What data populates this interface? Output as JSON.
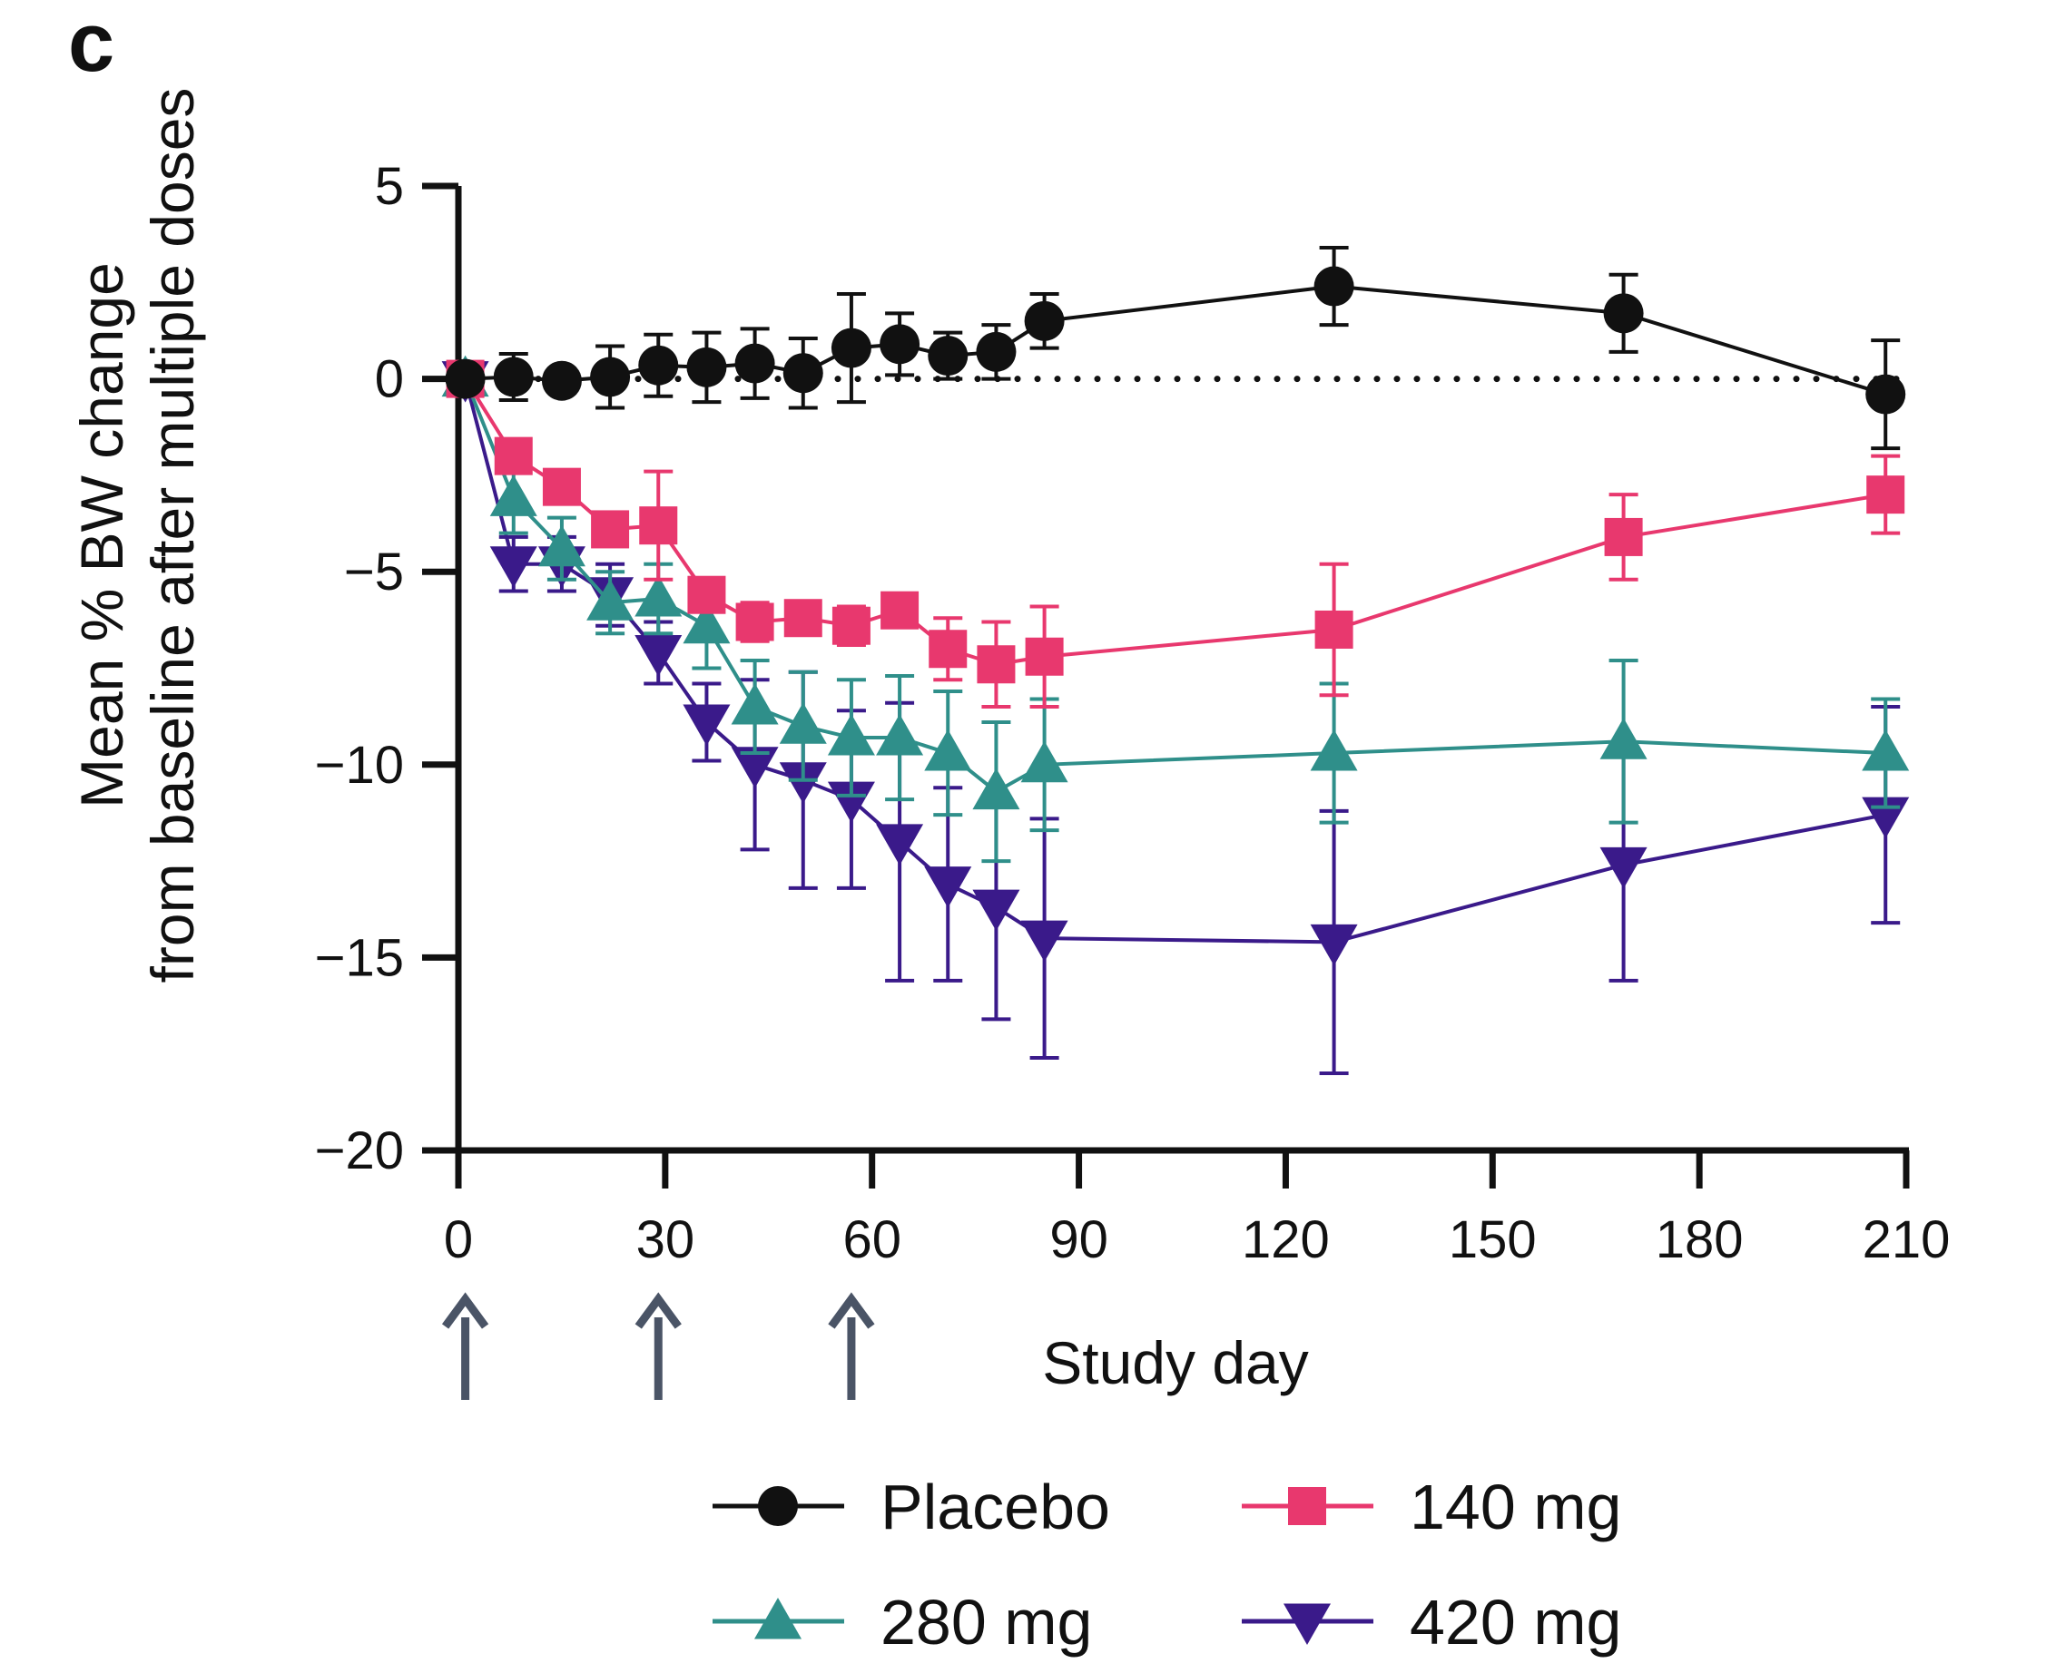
{
  "panel_label": "c",
  "chart_data": {
    "type": "line",
    "title": "",
    "xlabel": "Study day",
    "ylabel_lines": [
      "Mean % BW change",
      "from baseline after multiple doses"
    ],
    "xlim": [
      0,
      210
    ],
    "ylim": [
      -20,
      5
    ],
    "xticks": [
      0,
      30,
      60,
      90,
      120,
      150,
      180,
      210
    ],
    "yticks": [
      5,
      0,
      -5,
      -10,
      -15,
      -20
    ],
    "xtick_labels": [
      "0",
      "30",
      "60",
      "90",
      "120",
      "150",
      "180",
      "210"
    ],
    "ytick_labels": [
      "5",
      "0",
      "−5",
      "−10",
      "−15",
      "−20"
    ],
    "reference_line": {
      "y": 0,
      "style": "dotted"
    },
    "dose_days": [
      1,
      29,
      57
    ],
    "legend_position": "bottom",
    "series": [
      {
        "name": "Placebo",
        "color": "#111111",
        "marker": "circle",
        "x": [
          1,
          8,
          15,
          22,
          29,
          36,
          43,
          50,
          57,
          64,
          71,
          78,
          85,
          127,
          169,
          207
        ],
        "y": [
          0,
          0.05,
          -0.05,
          0.05,
          0.35,
          0.3,
          0.4,
          0.15,
          0.8,
          0.9,
          0.6,
          0.7,
          1.5,
          2.4,
          1.7,
          -0.4
        ],
        "err": [
          0,
          0.6,
          0,
          0.8,
          0.8,
          0.9,
          0.9,
          0.9,
          1.4,
          0.8,
          0.6,
          0.7,
          0.7,
          1.0,
          1.0,
          1.4
        ]
      },
      {
        "name": "140 mg",
        "color": "#e8386e",
        "marker": "square",
        "x": [
          1,
          8,
          15,
          22,
          29,
          36,
          43,
          50,
          57,
          64,
          71,
          78,
          85,
          127,
          169,
          207
        ],
        "y": [
          0,
          -2.0,
          -2.8,
          -3.9,
          -3.8,
          -5.6,
          -6.3,
          -6.2,
          -6.4,
          -6.0,
          -7.0,
          -7.4,
          -7.2,
          -6.5,
          -4.1,
          -3.0
        ],
        "err": [
          0,
          0.3,
          0.3,
          0.3,
          1.4,
          0.4,
          0.5,
          0.4,
          0.5,
          0.4,
          0.8,
          1.1,
          1.3,
          1.7,
          1.1,
          1.0
        ]
      },
      {
        "name": "280 mg",
        "color": "#2f8f8a",
        "marker": "triangle-up",
        "x": [
          1,
          8,
          15,
          22,
          29,
          36,
          43,
          50,
          57,
          64,
          71,
          78,
          85,
          127,
          169,
          207
        ],
        "y": [
          0,
          -3.1,
          -4.4,
          -5.8,
          -5.7,
          -6.4,
          -8.5,
          -9.0,
          -9.3,
          -9.3,
          -9.7,
          -10.7,
          -10.0,
          -9.7,
          -9.4,
          -9.7
        ],
        "err": [
          0,
          0.9,
          0.8,
          0.8,
          0.9,
          1.1,
          1.2,
          1.4,
          1.5,
          1.6,
          1.6,
          1.8,
          1.7,
          1.8,
          2.1,
          1.4
        ]
      },
      {
        "name": "420 mg",
        "color": "#3a1a8a",
        "marker": "triangle-down",
        "x": [
          1,
          8,
          15,
          22,
          29,
          36,
          43,
          50,
          57,
          64,
          71,
          78,
          85,
          127,
          169,
          207
        ],
        "y": [
          0,
          -4.8,
          -4.8,
          -5.6,
          -7.1,
          -8.9,
          -10.0,
          -10.4,
          -10.9,
          -12.0,
          -13.1,
          -13.7,
          -14.5,
          -14.6,
          -12.6,
          -11.3
        ],
        "err": [
          0,
          0.7,
          0.7,
          0.8,
          0.8,
          1.0,
          2.2,
          2.8,
          2.3,
          3.6,
          2.5,
          2.9,
          3.1,
          3.4,
          3.0,
          2.8
        ]
      }
    ]
  }
}
